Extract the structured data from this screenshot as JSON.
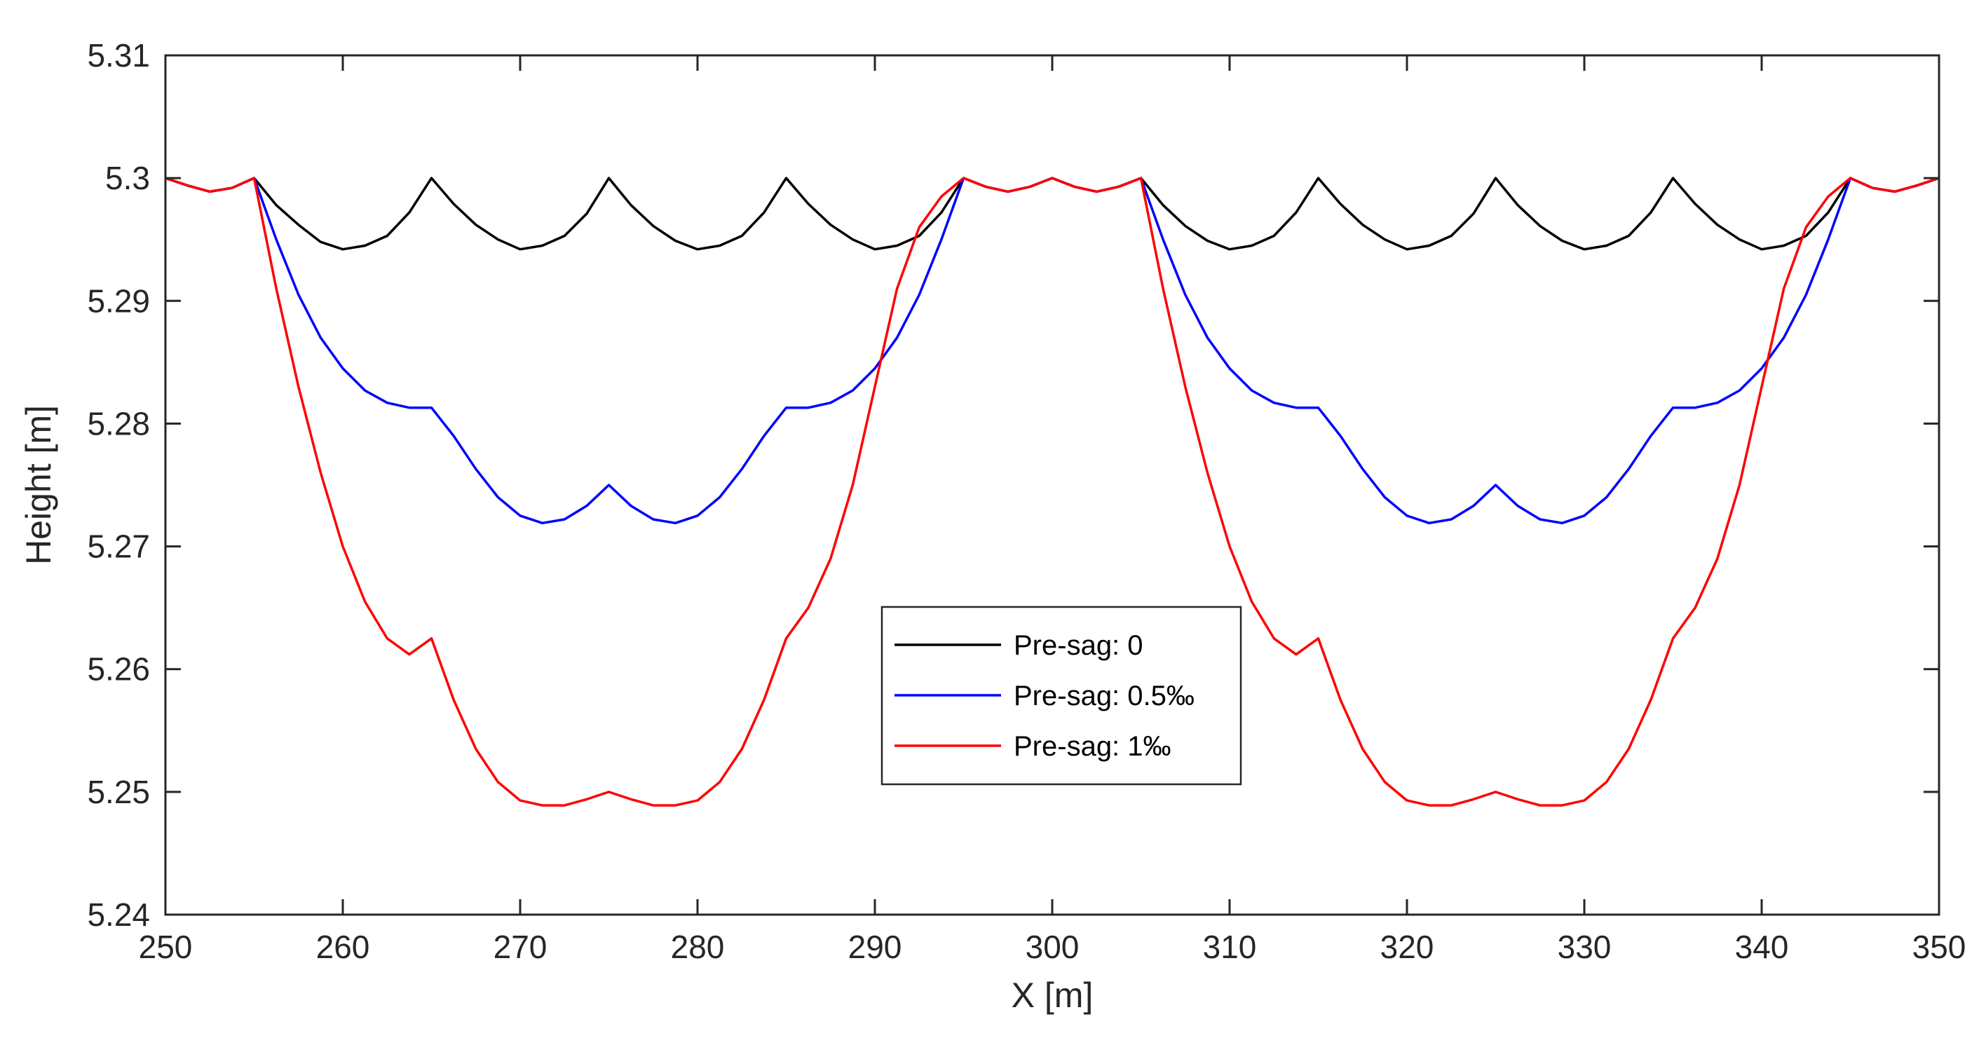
{
  "chart_data": {
    "type": "line",
    "title": "",
    "xlabel": "X [m]",
    "ylabel": "Height [m]",
    "xlim": [
      250,
      350
    ],
    "ylim": [
      5.24,
      5.31
    ],
    "xticks": [
      250,
      260,
      270,
      280,
      290,
      300,
      310,
      320,
      330,
      340,
      350
    ],
    "xtick_labels": [
      "250",
      "260",
      "270",
      "280",
      "290",
      "300",
      "310",
      "320",
      "330",
      "340",
      "350"
    ],
    "yticks": [
      5.24,
      5.25,
      5.26,
      5.27,
      5.28,
      5.29,
      5.3,
      5.31
    ],
    "ytick_labels": [
      "5.24",
      "5.25",
      "5.26",
      "5.27",
      "5.28",
      "5.29",
      "5.3",
      "5.31"
    ],
    "grid": false,
    "legend_position": "center",
    "series": [
      {
        "name": "Pre-sag: 0",
        "color": "#000000",
        "x": [
          250,
          251.25,
          252.5,
          253.75,
          255,
          256.25,
          257.5,
          258.75,
          260,
          261.25,
          262.5,
          263.75,
          265,
          266.25,
          267.5,
          268.75,
          270,
          271.25,
          272.5,
          273.75,
          275,
          276.25,
          277.5,
          278.75,
          280,
          281.25,
          282.5,
          283.75,
          285,
          286.25,
          287.5,
          288.75,
          290,
          291.25,
          292.5,
          293.75,
          295,
          296.25,
          297.5,
          298.75,
          300,
          301.25,
          302.5,
          303.75,
          305,
          306.25,
          307.5,
          308.75,
          310,
          311.25,
          312.5,
          313.75,
          315,
          316.25,
          317.5,
          318.75,
          320,
          321.25,
          322.5,
          323.75,
          325,
          326.25,
          327.5,
          328.75,
          330,
          331.25,
          332.5,
          333.75,
          335,
          336.25,
          337.5,
          338.75,
          340,
          341.25,
          342.5,
          343.75,
          345,
          346.25,
          347.5,
          348.75,
          350
        ],
        "y": [
          5.3,
          5.2994,
          5.2989,
          5.2992,
          5.3,
          5.2978,
          5.2962,
          5.2948,
          5.2942,
          5.2945,
          5.2953,
          5.2972,
          5.3,
          5.2979,
          5.2962,
          5.295,
          5.2942,
          5.2945,
          5.2953,
          5.2971,
          5.3,
          5.2978,
          5.2961,
          5.2949,
          5.2942,
          5.2945,
          5.2953,
          5.2972,
          5.3,
          5.2979,
          5.2962,
          5.295,
          5.2942,
          5.2945,
          5.2953,
          5.2972,
          5.3,
          5.2993,
          5.2989,
          5.2993,
          5.3,
          5.2993,
          5.2989,
          5.2993,
          5.3,
          5.2978,
          5.2961,
          5.2949,
          5.2942,
          5.2945,
          5.2953,
          5.2972,
          5.3,
          5.2979,
          5.2962,
          5.295,
          5.2942,
          5.2945,
          5.2953,
          5.2971,
          5.3,
          5.2978,
          5.2961,
          5.2949,
          5.2942,
          5.2945,
          5.2953,
          5.2972,
          5.3,
          5.2979,
          5.2962,
          5.295,
          5.2942,
          5.2945,
          5.2953,
          5.2972,
          5.3,
          5.2992,
          5.2989,
          5.2994,
          5.3
        ]
      },
      {
        "name": "Pre-sag: 0.5‰",
        "color": "#0000ff",
        "x": [
          250,
          251.25,
          252.5,
          253.75,
          255,
          256.25,
          257.5,
          258.75,
          260,
          261.25,
          262.5,
          263.75,
          265,
          266.25,
          267.5,
          268.75,
          270,
          271.25,
          272.5,
          273.75,
          275,
          276.25,
          277.5,
          278.75,
          280,
          281.25,
          282.5,
          283.75,
          285,
          286.25,
          287.5,
          288.75,
          290,
          291.25,
          292.5,
          293.75,
          295,
          296.25,
          297.5,
          298.75,
          300,
          301.25,
          302.5,
          303.75,
          305,
          306.25,
          307.5,
          308.75,
          310,
          311.25,
          312.5,
          313.75,
          315,
          316.25,
          317.5,
          318.75,
          320,
          321.25,
          322.5,
          323.75,
          325,
          326.25,
          327.5,
          328.75,
          330,
          331.25,
          332.5,
          333.75,
          335,
          336.25,
          337.5,
          338.75,
          340,
          341.25,
          342.5,
          343.75,
          345,
          346.25,
          347.5,
          348.75,
          350
        ],
        "y": [
          5.3,
          5.2994,
          5.2989,
          5.2992,
          5.3,
          5.295,
          5.2905,
          5.287,
          5.2845,
          5.2827,
          5.2817,
          5.2813,
          5.2813,
          5.279,
          5.2763,
          5.274,
          5.2725,
          5.2719,
          5.2722,
          5.2733,
          5.275,
          5.2733,
          5.2722,
          5.2719,
          5.2725,
          5.274,
          5.2763,
          5.279,
          5.2813,
          5.2813,
          5.2817,
          5.2827,
          5.2845,
          5.287,
          5.2905,
          5.295,
          5.3,
          5.2993,
          5.2989,
          5.2993,
          5.3,
          5.2993,
          5.2989,
          5.2993,
          5.3,
          5.295,
          5.2905,
          5.287,
          5.2845,
          5.2827,
          5.2817,
          5.2813,
          5.2813,
          5.279,
          5.2763,
          5.274,
          5.2725,
          5.2719,
          5.2722,
          5.2733,
          5.275,
          5.2733,
          5.2722,
          5.2719,
          5.2725,
          5.274,
          5.2763,
          5.279,
          5.2813,
          5.2813,
          5.2817,
          5.2827,
          5.2845,
          5.287,
          5.2905,
          5.295,
          5.3,
          5.2992,
          5.2989,
          5.2994,
          5.3
        ]
      },
      {
        "name": "Pre-sag: 1‰",
        "color": "#ff0000",
        "x": [
          250,
          251.25,
          252.5,
          253.75,
          255,
          256.25,
          257.5,
          258.75,
          260,
          261.25,
          262.5,
          263.75,
          265,
          266.25,
          267.5,
          268.75,
          270,
          271.25,
          272.5,
          273.75,
          275,
          276.25,
          277.5,
          278.75,
          280,
          281.25,
          282.5,
          283.75,
          285,
          286.25,
          287.5,
          288.75,
          290,
          291.25,
          292.5,
          293.75,
          295,
          296.25,
          297.5,
          298.75,
          300,
          301.25,
          302.5,
          303.75,
          305,
          306.25,
          307.5,
          308.75,
          310,
          311.25,
          312.5,
          313.75,
          315,
          316.25,
          317.5,
          318.75,
          320,
          321.25,
          322.5,
          323.75,
          325,
          326.25,
          327.5,
          328.75,
          330,
          331.25,
          332.5,
          333.75,
          335,
          336.25,
          337.5,
          338.75,
          340,
          341.25,
          342.5,
          343.75,
          345,
          346.25,
          347.5,
          348.75,
          350
        ],
        "y": [
          5.3,
          5.2994,
          5.2989,
          5.2992,
          5.3,
          5.291,
          5.283,
          5.276,
          5.27,
          5.2655,
          5.2625,
          5.2612,
          5.2625,
          5.2575,
          5.2535,
          5.2508,
          5.2493,
          5.2489,
          5.2489,
          5.2494,
          5.25,
          5.2494,
          5.2489,
          5.2489,
          5.2493,
          5.2508,
          5.2535,
          5.2575,
          5.2625,
          5.265,
          5.269,
          5.275,
          5.283,
          5.291,
          5.296,
          5.2985,
          5.3,
          5.2993,
          5.2989,
          5.2993,
          5.3,
          5.2993,
          5.2989,
          5.2993,
          5.3,
          5.291,
          5.283,
          5.276,
          5.27,
          5.2655,
          5.2625,
          5.2612,
          5.2625,
          5.2575,
          5.2535,
          5.2508,
          5.2493,
          5.2489,
          5.2489,
          5.2494,
          5.25,
          5.2494,
          5.2489,
          5.2489,
          5.2493,
          5.2508,
          5.2535,
          5.2575,
          5.2625,
          5.265,
          5.269,
          5.275,
          5.283,
          5.291,
          5.296,
          5.2985,
          5.3,
          5.2992,
          5.2989,
          5.2994,
          5.3
        ]
      }
    ]
  }
}
